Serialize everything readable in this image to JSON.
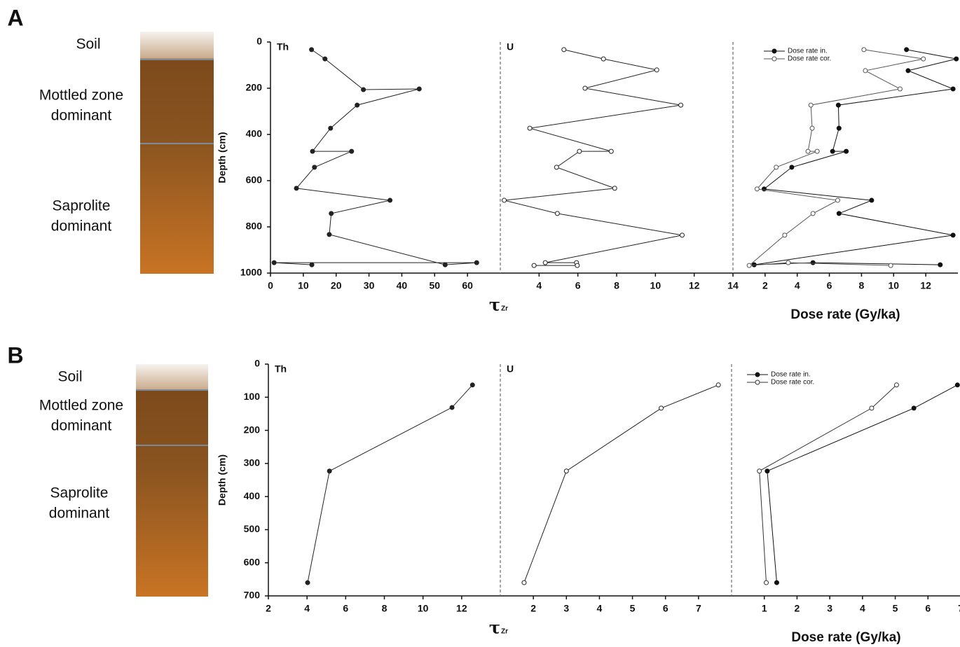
{
  "chart_data": [
    {
      "type": "line",
      "panel_label": "A",
      "profile": {
        "soil": "Soil",
        "mottled": [
          "Mottled zone",
          "dominant"
        ],
        "saprolite": [
          "Saprolite",
          "dominant"
        ]
      },
      "y_label": "Depth (cm)",
      "ylim": [
        0,
        1000
      ],
      "yticks": [
        0,
        200,
        400,
        600,
        800,
        1000
      ],
      "tau_label": {
        "symbol": "τ",
        "sub": "Zr"
      },
      "panels": [
        {
          "title": "Th",
          "xlim": [
            0,
            70
          ],
          "xticks": [
            0,
            10,
            20,
            30,
            40,
            50,
            60
          ],
          "series": [
            {
              "color": "#222222",
              "marker": "filled",
              "values": [
                12.5,
                16.6,
                28.3,
                45.3,
                26.4,
                18.3,
                12.8,
                24.7,
                13.4,
                7.9,
                36.4,
                18.5,
                17.9,
                53.2,
                62.8,
                1.1,
                12.6
              ],
              "depth": [
                33,
                73,
                206,
                203,
                273,
                373,
                473,
                473,
                542,
                633,
                685,
                742,
                833,
                964,
                955,
                955,
                964
              ]
            }
          ]
        },
        {
          "title": "U",
          "xlim": [
            2,
            14
          ],
          "xticks": [
            4,
            6,
            8,
            10,
            12,
            14
          ],
          "series": [
            {
              "color": "#222222",
              "marker": "open",
              "values": [
                5.28,
                7.32,
                10.07,
                6.37,
                11.31,
                3.52,
                7.72,
                6.08,
                4.9,
                7.9,
                2.2,
                4.94,
                11.38,
                4.32,
                5.93,
                5.97,
                3.74
              ],
              "depth": [
                33,
                73,
                121,
                200,
                273,
                373,
                473,
                473,
                542,
                633,
                685,
                742,
                836,
                955,
                955,
                967,
                967
              ]
            }
          ]
        },
        {
          "x_label": "Dose rate (Gy/ka)",
          "xlim": [
            0,
            14
          ],
          "xticks": [
            2,
            4,
            6,
            8,
            10,
            12
          ],
          "legend": "upper left",
          "series": [
            {
              "name": "Dose rate in.",
              "color": "#111111",
              "marker": "filled",
              "values": [
                10.8,
                13.9,
                10.9,
                13.7,
                6.56,
                6.6,
                6.2,
                7.05,
                3.66,
                1.94,
                8.63,
                6.6,
                13.7,
                1.32,
                4.98,
                12.9
              ],
              "depth": [
                33,
                73,
                124,
                203,
                273,
                373,
                473,
                473,
                542,
                636,
                685,
                742,
                836,
                964,
                955,
                964
              ]
            },
            {
              "name": "Dose rate cor.",
              "color": "#555555",
              "marker": "open",
              "values": [
                8.15,
                11.85,
                8.24,
                10.4,
                4.85,
                4.93,
                4.67,
                5.24,
                2.69,
                1.5,
                6.52,
                4.98,
                3.22,
                1.01,
                3.44,
                9.82
              ],
              "depth": [
                33,
                73,
                124,
                203,
                273,
                373,
                473,
                473,
                542,
                636,
                685,
                742,
                836,
                967,
                955,
                967
              ]
            }
          ]
        }
      ]
    },
    {
      "type": "line",
      "panel_label": "B",
      "profile": {
        "soil": "Soil",
        "mottled": [
          "Mottled zone",
          "dominant"
        ],
        "saprolite": [
          "Saprolite",
          "dominant"
        ]
      },
      "y_label": "Depth (cm)",
      "ylim": [
        0,
        700
      ],
      "yticks": [
        0,
        100,
        200,
        300,
        400,
        500,
        600,
        700
      ],
      "tau_label": {
        "symbol": "τ",
        "sub": "Zr"
      },
      "panels": [
        {
          "title": "Th",
          "xlim": [
            2,
            14
          ],
          "xticks": [
            2,
            4,
            6,
            8,
            10,
            12
          ],
          "series": [
            {
              "color": "#222222",
              "marker": "filled",
              "values": [
                12.56,
                11.5,
                5.16,
                4.03
              ],
              "depth": [
                63,
                131,
                323,
                660
              ]
            }
          ]
        },
        {
          "title": "U",
          "xlim": [
            1,
            8
          ],
          "xticks": [
            2,
            3,
            4,
            5,
            6,
            7
          ],
          "series": [
            {
              "color": "#222222",
              "marker": "open",
              "values": [
                7.6,
                5.87,
                3.0,
                1.72
              ],
              "depth": [
                63,
                133,
                323,
                660
              ]
            }
          ]
        },
        {
          "x_label": "Dose rate (Gy/ka)",
          "xlim": [
            0,
            7
          ],
          "xticks": [
            1,
            2,
            3,
            4,
            5,
            6,
            7
          ],
          "legend": "upper left",
          "series": [
            {
              "name": "Dose rate in.",
              "color": "#111111",
              "marker": "filled",
              "values": [
                6.9,
                5.57,
                1.09,
                1.38
              ],
              "depth": [
                63,
                133,
                323,
                660
              ]
            },
            {
              "name": "Dose rate cor.",
              "color": "#333333",
              "marker": "open",
              "values": [
                5.04,
                4.28,
                0.85,
                1.06
              ],
              "depth": [
                63,
                133,
                323,
                660
              ]
            }
          ]
        }
      ]
    }
  ]
}
